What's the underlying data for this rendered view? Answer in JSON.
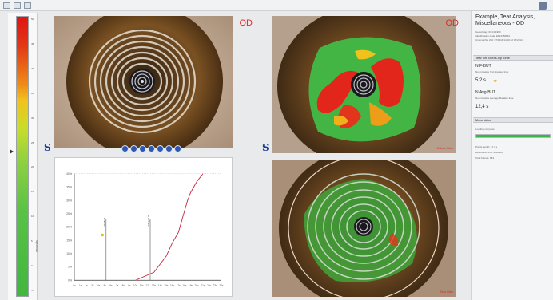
{
  "toolbar": {
    "icons": [
      "grid-icon",
      "layers-icon",
      "maximize-icon"
    ]
  },
  "scale": {
    "ticks": [
      "50",
      "45",
      "40",
      "35",
      "30",
      "25",
      "20",
      "15",
      "10",
      "5",
      "0",
      "-5"
    ],
    "label": "seconds"
  },
  "panels": {
    "top_left": {
      "eye_label": "OD"
    },
    "top_right": {
      "eye_label": "OD",
      "caption": "Colour Map"
    },
    "bottom_right": {
      "caption": "Tear Map"
    }
  },
  "chart_data": {
    "type": "line",
    "xlabel": "",
    "ylabel": "",
    "xlim": [
      0,
      24
    ],
    "ylim": [
      0,
      40
    ],
    "y_ticks": [
      "40%",
      "35%",
      "30%",
      "25%",
      "20%",
      "15%",
      "10%",
      "5%",
      "0%"
    ],
    "x_ticks": [
      "0s",
      "1s",
      "2s",
      "3s",
      "4s",
      "5s",
      "6s",
      "7s",
      "8s",
      "9s",
      "10s",
      "11s",
      "12s",
      "13s",
      "14s",
      "15s",
      "16s",
      "17s",
      "18s",
      "19s",
      "20s",
      "21s",
      "22s",
      "23s",
      "24s"
    ],
    "series": [
      {
        "x": [
          10,
          11,
          12,
          13,
          14,
          15,
          16,
          17,
          17.5,
          18,
          18.5,
          19,
          20,
          21
        ],
        "y": [
          0,
          1,
          2,
          3,
          6,
          9,
          14,
          18,
          22,
          26,
          30,
          33,
          37,
          40
        ]
      }
    ],
    "vlines": [
      {
        "x": 5.2,
        "label": "NIF-BUT"
      },
      {
        "x": 12.4,
        "label": "NIAvg-BUT"
      }
    ],
    "point": {
      "x": 4.6,
      "y": 17
    }
  },
  "sidebar": {
    "title": "Example, Tear Analysis, Miscellaneous - OD",
    "meta": [
      "Geburtstag: 01.01.1960",
      "Identification code: EF23456891",
      "Untersuchte Zeit: 07/02/2014 10:42 17/2014"
    ],
    "section1": "Tear film Break-Up Time",
    "nif_label": "NIF-BUT",
    "nif_desc": "Non invasive first Breakup time",
    "nif_value": "5,2 s",
    "avg_label": "NIAvg-BUT",
    "avg_desc": "Non invasive average Breakup time",
    "avg_value": "12,4 s",
    "section2": "Meas data",
    "status": "Loading complete",
    "progress": 100,
    "stats": [
      "Points length: 17,7 s",
      "Reference: 25,0 Seconds",
      "Total frames: 184"
    ]
  }
}
